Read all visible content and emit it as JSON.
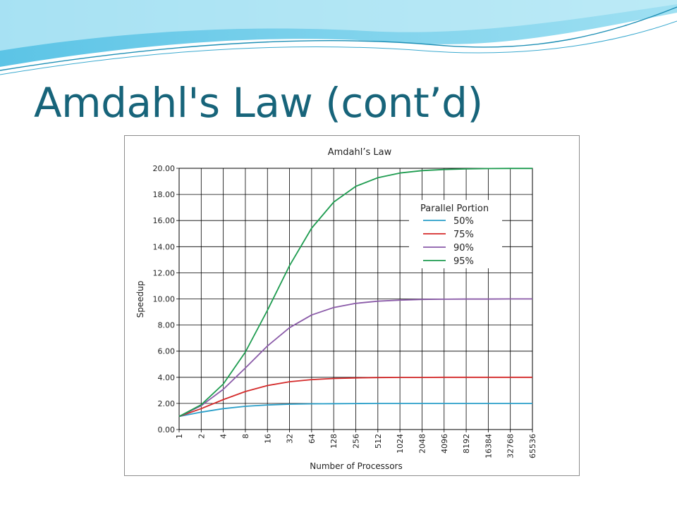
{
  "slide": {
    "title": "Amdahl's Law (cont’d)",
    "colors": {
      "title": "#17647a",
      "wave_dark": "#1e8fb5",
      "wave_light": "#8fd6ee"
    }
  },
  "chart_data": {
    "type": "line",
    "title": "Amdahl’s Law",
    "xlabel": "Number of Processors",
    "ylabel": "Speedup",
    "x_scale": "log2",
    "categories": [
      "1",
      "2",
      "4",
      "8",
      "16",
      "32",
      "64",
      "128",
      "256",
      "512",
      "1024",
      "2048",
      "4096",
      "8192",
      "16384",
      "32768",
      "65536"
    ],
    "ylim": [
      0,
      20
    ],
    "y_ticks": [
      "0.00",
      "2.00",
      "4.00",
      "6.00",
      "8.00",
      "10.00",
      "12.00",
      "14.00",
      "16.00",
      "18.00",
      "20.00"
    ],
    "grid": true,
    "legend": {
      "title": "Parallel Portion",
      "position": "top-right"
    },
    "series": [
      {
        "name": "50%",
        "color": "#2a9fc9",
        "values": [
          1.0,
          1.33,
          1.6,
          1.78,
          1.88,
          1.94,
          1.97,
          1.98,
          1.99,
          2.0,
          2.0,
          2.0,
          2.0,
          2.0,
          2.0,
          2.0,
          2.0
        ]
      },
      {
        "name": "75%",
        "color": "#d42a2a",
        "values": [
          1.0,
          1.6,
          2.29,
          2.91,
          3.37,
          3.66,
          3.82,
          3.91,
          3.95,
          3.98,
          3.99,
          3.99,
          4.0,
          4.0,
          4.0,
          4.0,
          4.0
        ]
      },
      {
        "name": "90%",
        "color": "#8a5aa8",
        "values": [
          1.0,
          1.82,
          3.08,
          4.71,
          6.4,
          7.8,
          8.77,
          9.34,
          9.66,
          9.83,
          9.91,
          9.96,
          9.98,
          9.99,
          9.99,
          10.0,
          10.0
        ]
      },
      {
        "name": "95%",
        "color": "#1e9c50",
        "values": [
          1.0,
          1.9,
          3.48,
          5.93,
          9.14,
          12.55,
          15.42,
          17.41,
          18.62,
          19.28,
          19.64,
          19.82,
          19.91,
          19.95,
          19.98,
          19.99,
          19.99
        ]
      }
    ]
  }
}
